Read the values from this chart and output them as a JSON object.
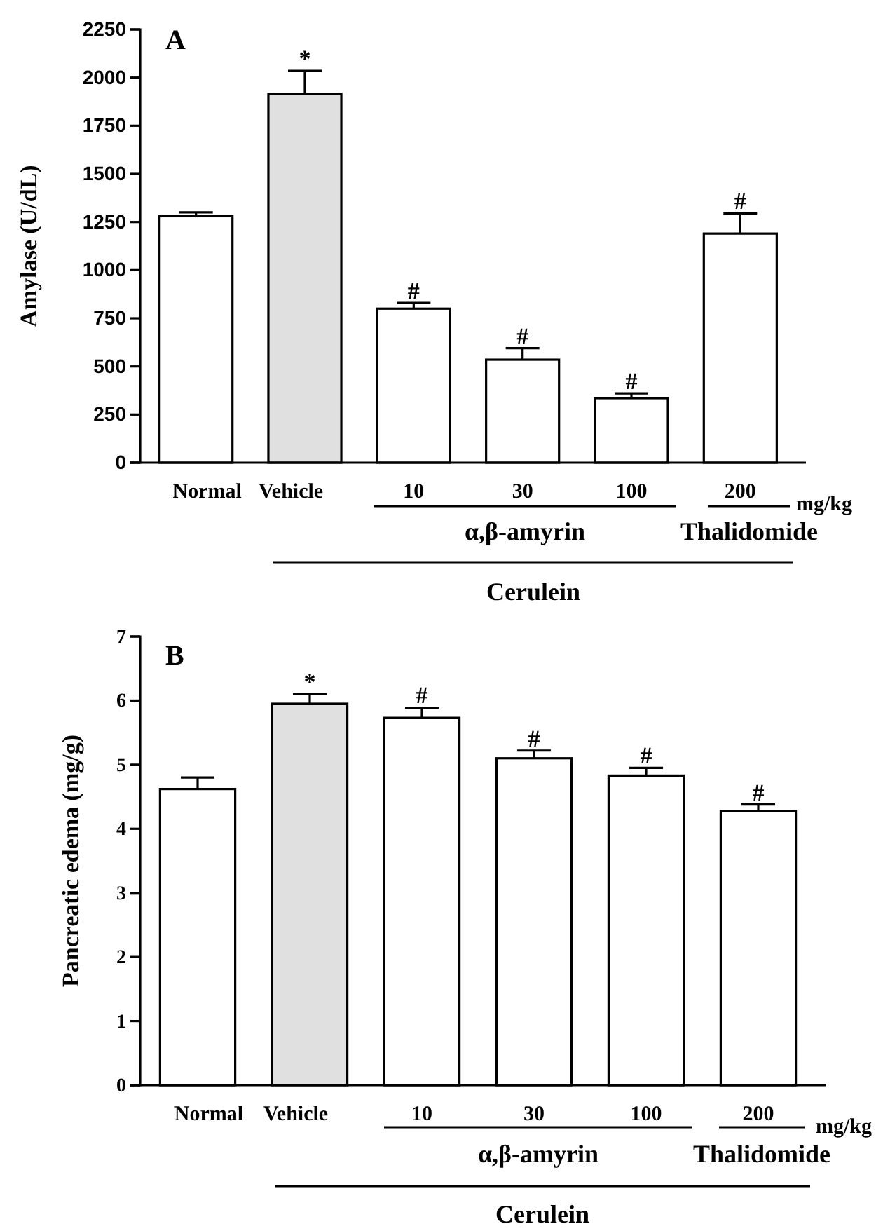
{
  "chart_data": [
    {
      "type": "bar",
      "ylabel": "Amylase (U/dL)",
      "categories": [
        "Normal",
        "Vehicle",
        "10",
        "30",
        "100",
        "200"
      ],
      "values": [
        1280,
        1915,
        800,
        535,
        335,
        1190
      ],
      "errors": [
        20,
        120,
        30,
        60,
        25,
        105
      ],
      "colors": [
        "#ffffff",
        "#e0e0e0",
        "#ffffff",
        "#ffffff",
        "#ffffff",
        "#ffffff"
      ],
      "ylim": [
        0,
        2250
      ],
      "yticks": [
        0,
        250,
        500,
        750,
        1000,
        1250,
        1500,
        1750,
        2000,
        2250
      ],
      "grid": false,
      "annotations": [
        "A",
        "mg/kg",
        "α,β-amyrin",
        "Thalidomide",
        "Cerulein",
        {
          "text": "*",
          "x": "Vehicle",
          "y": 2035
        },
        {
          "text": "#",
          "x": "10",
          "y": 830
        },
        {
          "text": "#",
          "x": "30",
          "y": 595
        },
        {
          "text": "#",
          "x": "100",
          "y": 360
        },
        {
          "text": "#",
          "x": "200",
          "y": 1295
        }
      ]
    },
    {
      "type": "bar",
      "ylabel": "Pancreatic edema (mg/g)",
      "categories": [
        "Normal",
        "Vehicle",
        "10",
        "30",
        "100",
        "200"
      ],
      "values": [
        4.62,
        5.95,
        5.73,
        5.1,
        4.83,
        4.28
      ],
      "errors": [
        0.18,
        0.15,
        0.16,
        0.12,
        0.12,
        0.1
      ],
      "colors": [
        "#ffffff",
        "#e0e0e0",
        "#ffffff",
        "#ffffff",
        "#ffffff",
        "#ffffff"
      ],
      "ylim": [
        0,
        7
      ],
      "yticks": [
        0,
        1,
        2,
        3,
        4,
        5,
        6,
        7
      ],
      "grid": false,
      "annotations": [
        "B",
        "mg/kg",
        "α,β-amyrin",
        "Thalidomide",
        "Cerulein",
        {
          "text": "*",
          "x": "Vehicle",
          "y": 6.1
        },
        {
          "text": "#",
          "x": "10",
          "y": 5.89
        },
        {
          "text": "#",
          "x": "30",
          "y": 5.22
        },
        {
          "text": "#",
          "x": "100",
          "y": 4.95
        },
        {
          "text": "#",
          "x": "200",
          "y": 4.38
        }
      ]
    }
  ]
}
